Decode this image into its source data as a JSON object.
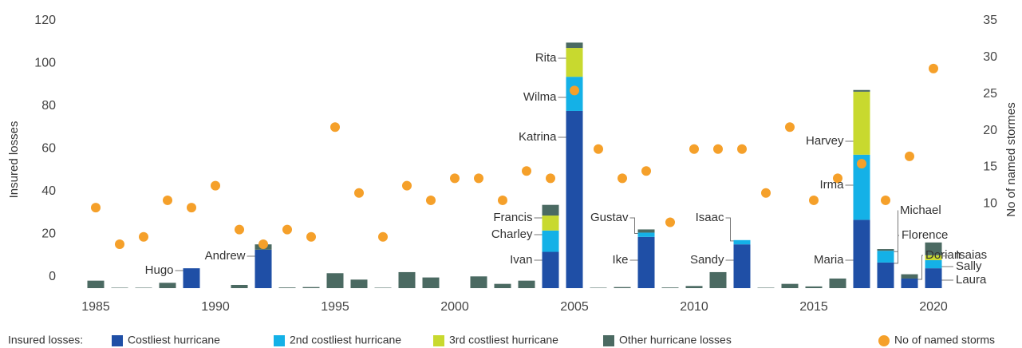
{
  "chart_data": {
    "type": "bar",
    "stacked": true,
    "x": [
      1985,
      1986,
      1987,
      1988,
      1989,
      1990,
      1991,
      1992,
      1993,
      1994,
      1995,
      1996,
      1997,
      1998,
      1999,
      2000,
      2001,
      2002,
      2003,
      2004,
      2005,
      2006,
      2007,
      2008,
      2009,
      2010,
      2011,
      2012,
      2013,
      2014,
      2015,
      2016,
      2017,
      2018,
      2019,
      2020
    ],
    "xlim": [
      1983.5,
      2021.5
    ],
    "xticks": [
      1985,
      1990,
      1995,
      2000,
      2005,
      2010,
      2015,
      2020
    ],
    "ylabel": "Insured losses",
    "ylim": [
      0,
      120
    ],
    "yticks": [
      0,
      20,
      40,
      60,
      80,
      100,
      120
    ],
    "y2label": "No of named stormes",
    "y2lim": [
      0,
      35
    ],
    "y2ticks": [
      10,
      15,
      20,
      25,
      30,
      35
    ],
    "legend_title": "Insured losses:",
    "series": [
      {
        "name": "Costliest hurricane",
        "color": "#1f4fa6",
        "values": [
          0,
          0,
          0,
          0,
          9.3,
          0,
          0,
          18,
          0,
          0,
          0,
          0,
          0,
          0,
          0,
          0,
          0,
          0,
          0,
          17,
          83,
          0,
          0,
          24,
          0,
          0,
          0,
          20.5,
          0,
          0,
          0,
          0,
          32,
          12,
          4.5,
          9.3
        ]
      },
      {
        "name": "2nd costliest hurricane",
        "color": "#14b1e7",
        "values": [
          0,
          0,
          0,
          0,
          0,
          0,
          0,
          0,
          0,
          0,
          0,
          0,
          0,
          0,
          0,
          0,
          0,
          0,
          0,
          10,
          16,
          0,
          0,
          2,
          0,
          0,
          0,
          2,
          0,
          0,
          0,
          0,
          30.5,
          5.5,
          0,
          3.8
        ]
      },
      {
        "name": "3rd costliest hurricane",
        "color": "#c8d92f",
        "values": [
          0,
          0,
          0,
          0,
          0,
          0,
          0,
          0,
          0,
          0,
          0,
          0,
          0,
          0,
          0,
          0,
          0,
          0,
          0,
          7,
          13.5,
          0,
          0,
          0,
          0,
          0,
          0,
          0,
          0,
          0,
          0,
          0,
          29.5,
          0,
          0,
          2.3
        ]
      },
      {
        "name": "Other hurricane losses",
        "color": "#4b6a62",
        "values": [
          3.5,
          0.2,
          0.2,
          2.5,
          0,
          0,
          1.5,
          2.5,
          0.3,
          0.5,
          7,
          4,
          0.2,
          7.5,
          5,
          0,
          5.5,
          2,
          3.5,
          5,
          2.5,
          0.2,
          0.5,
          1.5,
          0.3,
          1,
          7.5,
          0,
          0.2,
          2,
          0.8,
          4.5,
          0.8,
          0.8,
          2,
          6
        ]
      },
      {
        "name": "No of named storms",
        "color": "#f5a02a",
        "type": "scatter",
        "axis": "y2",
        "values": [
          11,
          6,
          7,
          12,
          11,
          14,
          8,
          6,
          8,
          7,
          22,
          13,
          7,
          14,
          12,
          15,
          15,
          12,
          16,
          15,
          27,
          19,
          15,
          16,
          9,
          19,
          19,
          19,
          13,
          22,
          12,
          15,
          17,
          12,
          18,
          30
        ]
      }
    ],
    "annotations": [
      {
        "text": "Hugo",
        "x": 1989,
        "series": "Costliest hurricane"
      },
      {
        "text": "Andrew",
        "x": 1992,
        "series": "Costliest hurricane"
      },
      {
        "text": "Francis",
        "x": 2004,
        "series": "3rd costliest hurricane"
      },
      {
        "text": "Charley",
        "x": 2004,
        "series": "2nd costliest hurricane"
      },
      {
        "text": "Ivan",
        "x": 2004,
        "series": "Costliest hurricane"
      },
      {
        "text": "Rita",
        "x": 2005,
        "series": "3rd costliest hurricane"
      },
      {
        "text": "Wilma",
        "x": 2005,
        "series": "2nd costliest hurricane"
      },
      {
        "text": "Katrina",
        "x": 2005,
        "series": "Costliest hurricane"
      },
      {
        "text": "Gustav",
        "x": 2008,
        "series": "2nd costliest hurricane"
      },
      {
        "text": "Ike",
        "x": 2008,
        "series": "Costliest hurricane"
      },
      {
        "text": "Isaac",
        "x": 2012,
        "series": "2nd costliest hurricane"
      },
      {
        "text": "Sandy",
        "x": 2012,
        "series": "Costliest hurricane"
      },
      {
        "text": "Harvey",
        "x": 2017,
        "series": "3rd costliest hurricane"
      },
      {
        "text": "Irma",
        "x": 2017,
        "series": "2nd costliest hurricane"
      },
      {
        "text": "Maria",
        "x": 2017,
        "series": "Costliest hurricane"
      },
      {
        "text": "Michael",
        "x": 2018,
        "series": "Costliest hurricane"
      },
      {
        "text": "Florence",
        "x": 2018,
        "series": "2nd costliest hurricane"
      },
      {
        "text": "Dorian",
        "x": 2019,
        "series": "Costliest hurricane"
      },
      {
        "text": "Isaias",
        "x": 2020,
        "series": "3rd costliest hurricane"
      },
      {
        "text": "Sally",
        "x": 2020,
        "series": "2nd costliest hurricane"
      },
      {
        "text": "Laura",
        "x": 2020,
        "series": "Costliest hurricane"
      }
    ]
  }
}
